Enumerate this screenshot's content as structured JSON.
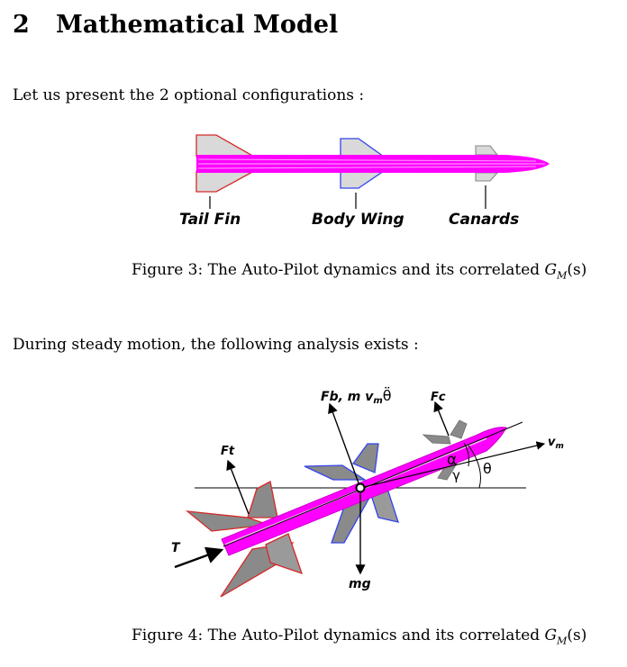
{
  "section": {
    "number": "2",
    "title": "Mathematical Model"
  },
  "paragraph1": "Let us present the 2 optional configurations :",
  "figure3": {
    "labels": {
      "tail_fin": "Tail Fin",
      "body_wing": "Body Wing",
      "canards": "Canards"
    },
    "caption_prefix": "Figure 3: The Auto-Pilot dynamics and its correlated",
    "caption_math": "G",
    "caption_sub": "M",
    "caption_arg": "(s)"
  },
  "paragraph2": "During steady motion, the following analysis exists :",
  "figure4": {
    "labels": {
      "fb": "Fb, m v",
      "fb_sub": "m",
      "fb_theta": "θ̈",
      "fc": "Fc",
      "ft": "Ft",
      "t": "T",
      "vm": "v",
      "vm_sub": "m",
      "mg": "mg",
      "alpha": "α",
      "gamma": "γ",
      "theta": "θ"
    },
    "caption_prefix": "Figure 4: The Auto-Pilot dynamics and its correlated",
    "caption_math": "G",
    "caption_sub": "M",
    "caption_arg": "(s)"
  },
  "colors": {
    "body": "#ff00ff",
    "tail": "#d42a2a",
    "wing": "#3344ee",
    "canard": "#888888"
  }
}
